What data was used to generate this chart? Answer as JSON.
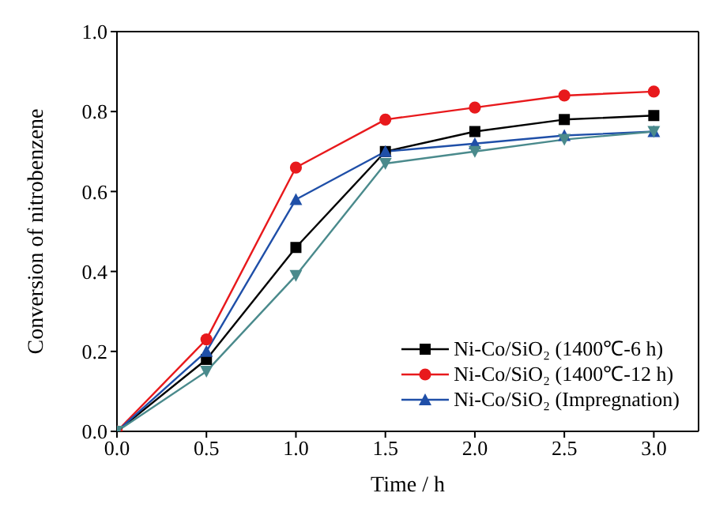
{
  "chart_data": {
    "type": "line",
    "xlabel": "Time / h",
    "ylabel": "Conversion of nitrobenzene",
    "x": [
      0,
      0.5,
      1,
      1.5,
      2,
      2.5,
      3
    ],
    "xlim": [
      0,
      3.25
    ],
    "xticks": [
      {
        "value": 0,
        "label": "0.0"
      },
      {
        "value": 0.5,
        "label": "0.5"
      },
      {
        "value": 1,
        "label": "1.0"
      },
      {
        "value": 1.5,
        "label": "1.5"
      },
      {
        "value": 2,
        "label": "2.0"
      },
      {
        "value": 2.5,
        "label": "2.5"
      },
      {
        "value": 3,
        "label": "3.0"
      }
    ],
    "ylim": [
      0,
      1
    ],
    "yticks": [
      {
        "value": 0,
        "label": "0.0"
      },
      {
        "value": 0.2,
        "label": "0.2"
      },
      {
        "value": 0.4,
        "label": "0.4"
      },
      {
        "value": 0.6,
        "label": "0.6"
      },
      {
        "value": 0.8,
        "label": "0.8"
      },
      {
        "value": 1,
        "label": "1.0"
      }
    ],
    "grid": false,
    "legend": "bottom right",
    "line_style": "solid",
    "series": [
      {
        "name": "Ni-Co/SiO₂ (1400℃-6 h)",
        "color": "#000000",
        "marker": "square",
        "values": [
          0,
          0.18,
          0.46,
          0.7,
          0.75,
          0.78,
          0.79
        ]
      },
      {
        "name": "Ni-Co/SiO₂ (1400℃-12 h)",
        "color": "#e8191c",
        "marker": "circle",
        "values": [
          0,
          0.23,
          0.66,
          0.78,
          0.81,
          0.84,
          0.85
        ]
      },
      {
        "name": "Ni-Co/SiO₂ (Impregnation)",
        "color": "#1f4fa8",
        "marker": "triangle",
        "values": [
          0,
          0.2,
          0.58,
          0.7,
          0.72,
          0.74,
          0.75
        ]
      },
      {
        "color": "#4a8a8c",
        "marker": "triangle-down",
        "values": [
          0,
          0.15,
          0.39,
          0.67,
          0.7,
          0.73,
          0.75
        ]
      }
    ]
  }
}
